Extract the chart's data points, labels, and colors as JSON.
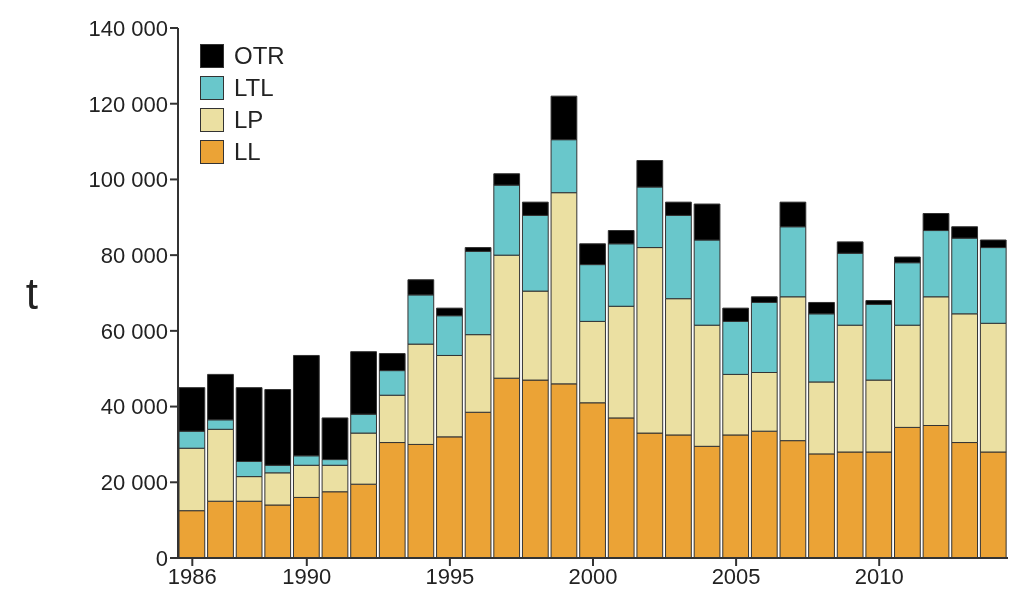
{
  "chart_data": {
    "type": "bar",
    "stacked": true,
    "ylabel": "t",
    "x": [
      1986,
      1987,
      1988,
      1989,
      1990,
      1991,
      1992,
      1993,
      1994,
      1995,
      1996,
      1997,
      1998,
      1999,
      2000,
      2001,
      2002,
      2003,
      2004,
      2005,
      2006,
      2007,
      2008,
      2009,
      2010,
      2011,
      2012,
      2013,
      2014
    ],
    "xlim": [
      1985.5,
      2014.5
    ],
    "xticks": [
      1986,
      1990,
      1995,
      2000,
      2005,
      2010
    ],
    "ylim": [
      0,
      140000
    ],
    "yticks": [
      {
        "value": 0,
        "label": "0"
      },
      {
        "value": 20000,
        "label": "20 000"
      },
      {
        "value": 40000,
        "label": "40 000"
      },
      {
        "value": 60000,
        "label": "60 000"
      },
      {
        "value": 80000,
        "label": "80 000"
      },
      {
        "value": 100000,
        "label": "100 000"
      },
      {
        "value": 120000,
        "label": "120 000"
      },
      {
        "value": 140000,
        "label": "140 000"
      }
    ],
    "legend": "top left",
    "grid": false,
    "series": [
      {
        "name": "LL",
        "color": "#eba336",
        "values": [
          12500,
          15000,
          15000,
          14000,
          16000,
          17500,
          19500,
          30500,
          30000,
          32000,
          38500,
          47500,
          47000,
          46000,
          41000,
          37000,
          33000,
          32500,
          29500,
          32500,
          33500,
          31000,
          27500,
          28000,
          28000,
          34500,
          35000,
          30500,
          28000
        ]
      },
      {
        "name": "LP",
        "color": "#ebe0a2",
        "values": [
          16500,
          19000,
          6500,
          8500,
          8500,
          7000,
          13500,
          12500,
          26500,
          21500,
          20500,
          32500,
          23500,
          50500,
          21500,
          29500,
          49000,
          36000,
          32000,
          16000,
          15500,
          38000,
          19000,
          33500,
          19000,
          27000,
          34000,
          34000,
          34000
        ]
      },
      {
        "name": "LTL",
        "color": "#69c7cb",
        "values": [
          4500,
          2500,
          4000,
          2000,
          2500,
          1500,
          5000,
          6500,
          13000,
          10500,
          22000,
          18500,
          20000,
          14000,
          15000,
          16500,
          16000,
          22000,
          22500,
          14000,
          18500,
          18500,
          18000,
          19000,
          20000,
          16500,
          17500,
          20000,
          20000
        ]
      },
      {
        "name": "OTR",
        "color": "#000000",
        "values": [
          11500,
          12000,
          19500,
          20000,
          26500,
          11000,
          16500,
          4500,
          4000,
          2000,
          1000,
          3000,
          3500,
          11500,
          5500,
          3500,
          7000,
          3500,
          9500,
          3500,
          1500,
          6500,
          3000,
          3000,
          1000,
          1500,
          4500,
          3000,
          2000
        ]
      }
    ]
  }
}
